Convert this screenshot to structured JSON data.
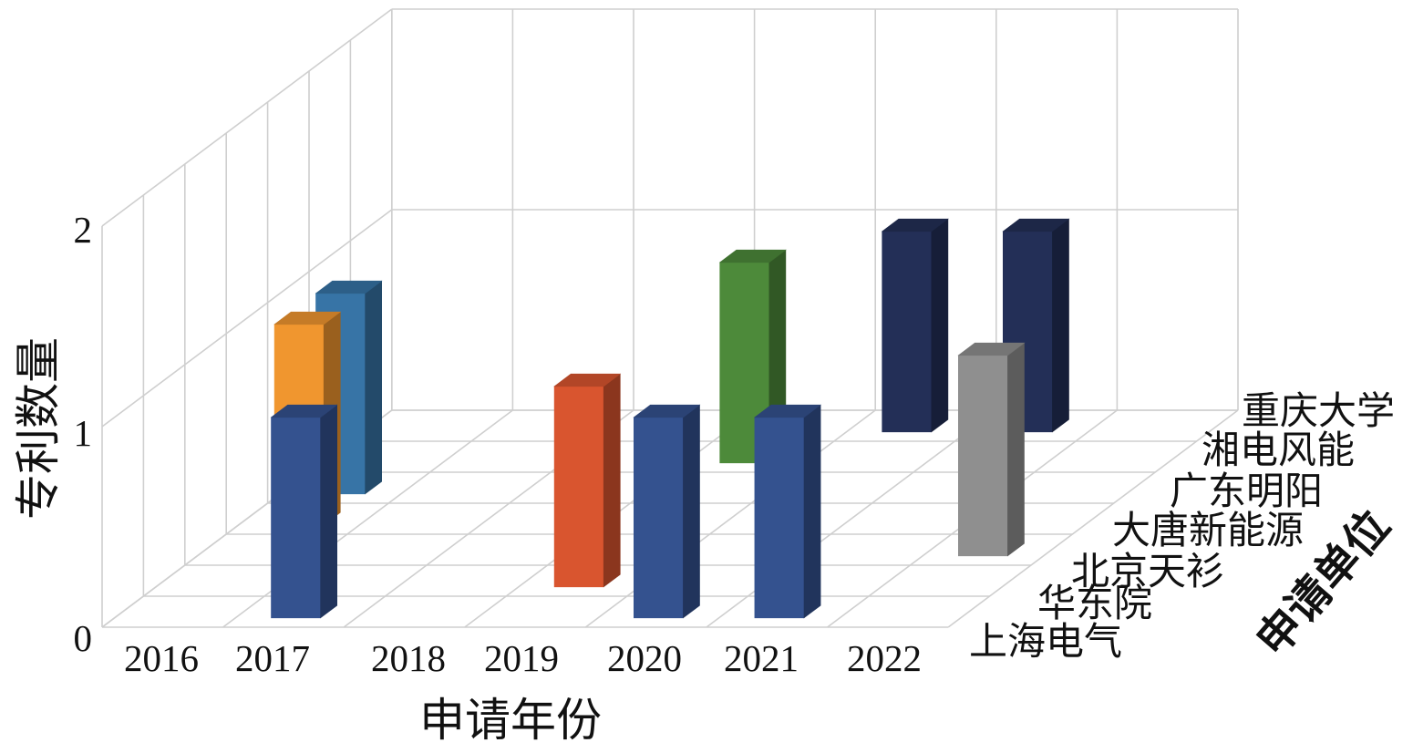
{
  "chart_data": {
    "type": "bar",
    "three_d": true,
    "xlabel": "申请年份",
    "ylabel": "专利数量",
    "zlabel": "申请单位",
    "categories": [
      "2016",
      "2017",
      "2018",
      "2019",
      "2020",
      "2021",
      "2022"
    ],
    "ylim": [
      0,
      2
    ],
    "yticks": [
      "0",
      "1",
      "2"
    ],
    "grid": true,
    "series": [
      {
        "name": "上海电气",
        "color": "#34528f",
        "values": [
          0,
          1,
          0,
          0,
          1,
          1,
          0
        ]
      },
      {
        "name": "华东院",
        "color": "#d9552f",
        "values": [
          0,
          0,
          0,
          1,
          0,
          0,
          0
        ]
      },
      {
        "name": "北京天衫",
        "color": "#8f8f8f",
        "values": [
          0,
          0,
          0,
          0,
          0,
          0,
          1
        ]
      },
      {
        "name": "大唐新能源",
        "color": "#f0962f",
        "values": [
          1,
          0,
          0,
          0,
          0,
          0,
          0
        ]
      },
      {
        "name": "广东明阳",
        "color": "#3774a6",
        "values": [
          1,
          0,
          0,
          0,
          0,
          0,
          0
        ]
      },
      {
        "name": "湘电风能",
        "color": "#4d8a3a",
        "values": [
          0,
          0,
          0,
          1,
          0,
          0,
          0
        ]
      },
      {
        "name": "重庆大学",
        "color": "#232f57",
        "values": [
          0,
          0,
          0,
          0,
          1,
          1,
          0
        ]
      }
    ]
  }
}
